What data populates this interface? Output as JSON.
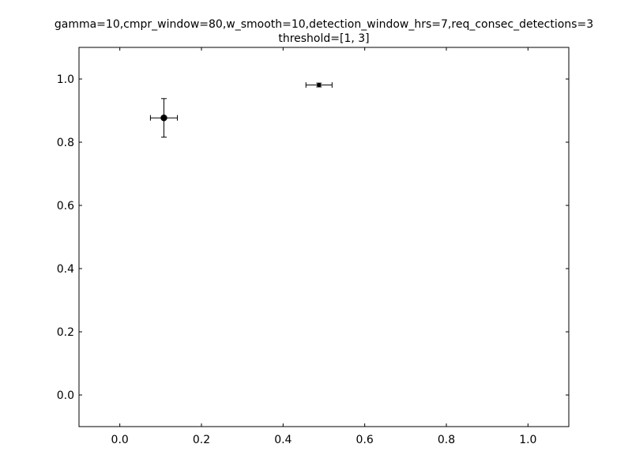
{
  "chart_data": {
    "type": "scatter",
    "title_lines": [
      "gamma=10,cmpr_window=80,w_smooth=10,detection_window_hrs=7,req_consec_detections=3",
      "threshold=[1, 3]"
    ],
    "xlabel": "",
    "ylabel": "",
    "xlim": [
      -0.1,
      1.1
    ],
    "ylim": [
      -0.1,
      1.1
    ],
    "x_ticks": [
      0.0,
      0.2,
      0.4,
      0.6,
      0.8,
      1.0
    ],
    "x_tick_labels": [
      "0.0",
      "0.2",
      "0.4",
      "0.6",
      "0.8",
      "1.0"
    ],
    "y_ticks": [
      0.0,
      0.2,
      0.4,
      0.6,
      0.8,
      1.0
    ],
    "y_tick_labels": [
      "0.0",
      "0.2",
      "0.4",
      "0.6",
      "0.8",
      "1.0"
    ],
    "grid": false,
    "marker_color": "#000000",
    "points": [
      {
        "x": 0.108,
        "y": 0.877,
        "xerr": 0.033,
        "yerr": 0.061,
        "marker_size": "large"
      },
      {
        "x": 0.488,
        "y": 0.981,
        "xerr": 0.032,
        "yerr": 0.006,
        "marker_size": "small"
      }
    ]
  }
}
